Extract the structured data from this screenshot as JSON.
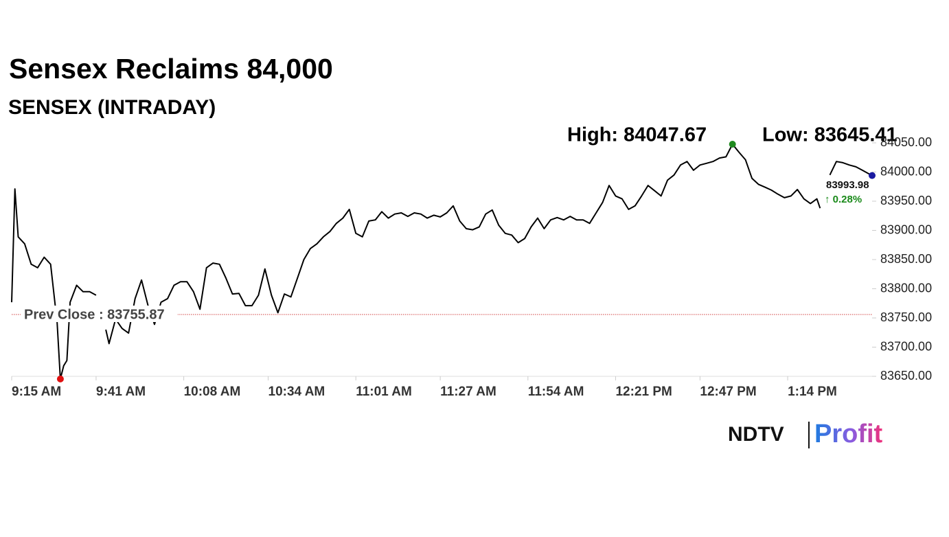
{
  "chart_data": {
    "type": "line",
    "title": "Sensex Reclaims 84,000",
    "subtitle": "SENSEX (INTRADAY)",
    "high_label": "High: 84047.67",
    "low_label": "Low: 83645.41",
    "prev_close": {
      "value": 83755.87,
      "label": "Prev Close : 83755.87"
    },
    "last_label": "83993.98",
    "change_label": "↑ 0.28%",
    "color": "#000000",
    "high_color": "#1f8a1f",
    "low_color": "#e01010",
    "last_color": "#1a1aa0",
    "prev_close_color": "#d04040",
    "x": [
      0,
      1,
      2,
      4,
      6,
      8,
      10,
      12,
      14,
      15,
      16,
      17,
      18,
      20,
      22,
      24,
      26,
      28,
      29,
      30,
      32,
      34,
      36,
      38,
      40,
      42,
      44,
      46,
      48,
      50,
      52,
      54,
      56,
      58,
      60,
      62,
      64,
      66,
      68,
      70,
      72,
      74,
      76,
      78,
      80,
      82,
      84,
      86,
      88,
      90,
      92,
      94,
      96,
      98,
      100,
      102,
      104,
      106,
      108,
      110,
      112,
      114,
      116,
      118,
      120,
      122,
      124,
      126,
      128,
      130,
      132,
      134,
      136,
      138,
      140,
      142,
      144,
      146,
      148,
      150,
      152,
      154,
      156,
      158,
      160,
      162,
      164,
      166,
      168,
      170,
      172,
      174,
      176,
      178,
      180,
      182,
      184,
      186,
      188,
      190,
      192,
      194,
      196,
      198,
      200,
      202,
      204,
      206,
      208,
      210,
      212,
      214,
      216,
      218,
      220,
      222,
      224,
      226,
      228,
      230,
      232,
      234,
      236,
      238,
      240,
      242,
      244,
      246,
      248,
      249,
      250,
      252,
      254,
      256,
      258,
      260,
      262,
      264,
      265
    ],
    "values": [
      83777,
      83971,
      83889,
      83877,
      83842,
      83836,
      83854,
      83842,
      83742,
      83645.41,
      83668,
      83677,
      83777,
      83806,
      83795,
      83795,
      83789,
      null,
      83730,
      83706,
      83748,
      83732,
      83724,
      83783,
      83815,
      83771,
      83739,
      83777,
      83783,
      83806,
      83812,
      83812,
      83795,
      83765,
      83836,
      83844,
      83842,
      83818,
      83791,
      83792,
      83771,
      83771,
      83789,
      83834,
      83789,
      83759,
      83791,
      83786,
      83818,
      83850,
      83869,
      83877,
      83889,
      83898,
      83912,
      83921,
      83936,
      83895,
      83889,
      83916,
      83918,
      83932,
      83921,
      83928,
      83930,
      83924,
      83930,
      83928,
      83921,
      83926,
      83923,
      83930,
      83942,
      83916,
      83903,
      83901,
      83906,
      83928,
      83935,
      83909,
      83895,
      83892,
      83879,
      83886,
      83906,
      83921,
      83903,
      83918,
      83922,
      83918,
      83924,
      83918,
      83918,
      83912,
      83930,
      83948,
      83977,
      83959,
      83954,
      83936,
      83942,
      83959,
      83977,
      83968,
      83959,
      83986,
      83995,
      84012,
      84018,
      84003,
      84012,
      84015,
      84018,
      84024,
      84026,
      84047.67,
      84034,
      84021,
      83989,
      83979,
      83974,
      83969,
      83962,
      83956,
      83959,
      83970,
      83954,
      83946,
      83954,
      83938,
      null,
      83995,
      84018,
      84016,
      84012,
      84009,
      84003,
      83997,
      83993.98
    ],
    "xlim": [
      0,
      265
    ],
    "xticks": [
      {
        "value": 0,
        "label": "9:15 AM"
      },
      {
        "value": 26,
        "label": "9:41 AM"
      },
      {
        "value": 53,
        "label": "10:08 AM"
      },
      {
        "value": 79,
        "label": "10:34 AM"
      },
      {
        "value": 106,
        "label": "11:01 AM"
      },
      {
        "value": 132,
        "label": "11:27 AM"
      },
      {
        "value": 159,
        "label": "11:54 AM"
      },
      {
        "value": 186,
        "label": "12:21 PM"
      },
      {
        "value": 212,
        "label": "12:47 PM"
      },
      {
        "value": 239,
        "label": "1:14 PM"
      }
    ],
    "ylim": [
      83650,
      84050
    ],
    "yticks": [
      {
        "value": 83650,
        "label": "83650.00"
      },
      {
        "value": 83700,
        "label": "83700.00"
      },
      {
        "value": 83750,
        "label": "83750.00"
      },
      {
        "value": 83800,
        "label": "83800.00"
      },
      {
        "value": 83850,
        "label": "83850.00"
      },
      {
        "value": 83900,
        "label": "83900.00"
      },
      {
        "value": 83950,
        "label": "83950.00"
      },
      {
        "value": 84000,
        "label": "84000.00"
      },
      {
        "value": 84050,
        "label": "84050.00"
      }
    ],
    "grid": false
  },
  "footer": {
    "brand": "NDTV",
    "brand_product": "Profit"
  }
}
